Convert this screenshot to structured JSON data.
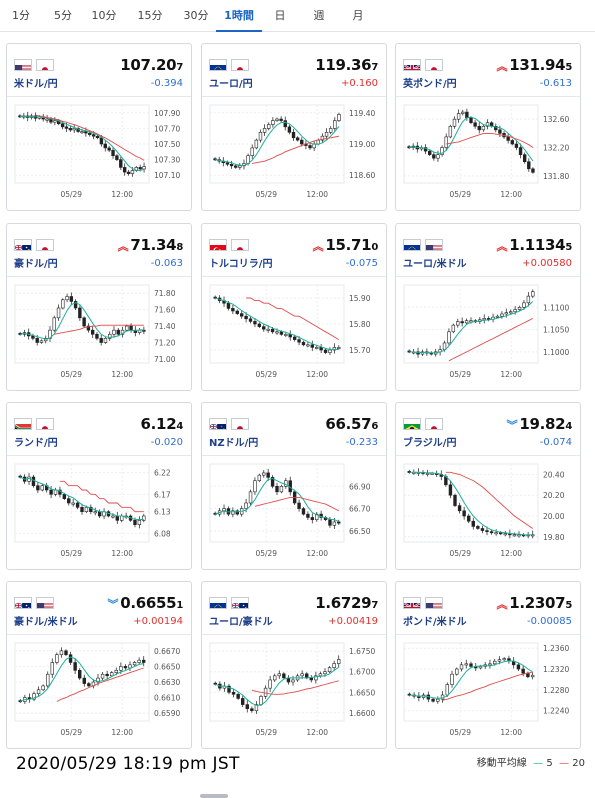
{
  "timeframe_tabs": [
    "1分",
    "5分",
    "10分",
    "15分",
    "30分",
    "1時間",
    "日",
    "週",
    "月"
  ],
  "active_tab": "1時間",
  "colors": {
    "accent": "#1d64c4",
    "negative_change": "#2f6fcf",
    "positive_change": "#e0312f",
    "ma5": "#1cb09a",
    "ma20": "#e04b4b"
  },
  "cards": [
    {
      "name": "米ドル/円",
      "flags": [
        "us-flag",
        "jp-flag"
      ],
      "price_main": "107.20",
      "price_sub": "7",
      "change": "-0.394",
      "dir": "neg",
      "arrow": "",
      "chart_data": {
        "type": "candlestick",
        "x_ticks": [
          "05/29",
          "12:00"
        ],
        "y_ticks": [
          "107.90",
          "107.70",
          "107.50",
          "107.30",
          "107.10"
        ],
        "ylim": [
          107.0,
          108.0
        ],
        "close": [
          107.85,
          107.86,
          107.84,
          107.86,
          107.83,
          107.85,
          107.82,
          107.82,
          107.78,
          107.8,
          107.76,
          107.72,
          107.7,
          107.68,
          107.7,
          107.66,
          107.66,
          107.64,
          107.62,
          107.6,
          107.58,
          107.5,
          107.45,
          107.42,
          107.35,
          107.3,
          107.2,
          107.14,
          107.12,
          107.16,
          107.2,
          107.18,
          107.21
        ],
        "ma20": [
          107.87,
          107.86,
          107.85,
          107.84,
          107.83,
          107.82,
          107.81,
          107.79,
          107.78,
          107.76,
          107.75,
          107.73,
          107.71,
          107.69,
          107.67,
          107.65,
          107.63,
          107.6,
          107.58,
          107.55,
          107.52,
          107.49,
          107.46,
          107.43,
          107.4,
          107.37,
          107.34,
          107.32,
          107.29
        ]
      }
    },
    {
      "name": "ユーロ/円",
      "flags": [
        "eu-flag",
        "jp-flag"
      ],
      "price_main": "119.36",
      "price_sub": "7",
      "change": "+0.160",
      "dir": "pos",
      "arrow": "",
      "chart_data": {
        "type": "candlestick",
        "x_ticks": [
          "05/29",
          "12:00"
        ],
        "y_ticks": [
          "119.40",
          "119.00",
          "118.60"
        ],
        "ylim": [
          118.5,
          119.5
        ],
        "close": [
          118.8,
          118.78,
          118.76,
          118.74,
          118.72,
          118.7,
          118.72,
          118.75,
          118.85,
          118.95,
          119.05,
          119.15,
          119.2,
          119.25,
          119.3,
          119.32,
          119.3,
          119.22,
          119.15,
          119.08,
          119.05,
          119.0,
          118.98,
          118.95,
          119.0,
          119.05,
          119.1,
          119.15,
          119.2,
          119.3,
          119.38
        ],
        "ma20": [
          118.75,
          118.76,
          118.77,
          118.78,
          118.8,
          118.82,
          118.85,
          118.87,
          118.9,
          118.92,
          118.94,
          118.96,
          118.98,
          119.0,
          119.02,
          119.04,
          119.05,
          119.06,
          119.07,
          119.08,
          119.09,
          119.1
        ]
      }
    },
    {
      "name": "英ポンド/円",
      "flags": [
        "gb-flag",
        "jp-flag"
      ],
      "price_main": "131.94",
      "price_sub": "5",
      "change": "-0.613",
      "dir": "neg",
      "arrow": "up",
      "chart_data": {
        "type": "candlestick",
        "x_ticks": [
          "05/29",
          "12:00"
        ],
        "y_ticks": [
          "132.60",
          "132.20",
          "131.80"
        ],
        "ylim": [
          131.7,
          132.8
        ],
        "close": [
          132.2,
          132.22,
          132.18,
          132.2,
          132.15,
          132.1,
          132.05,
          132.1,
          132.2,
          132.35,
          132.5,
          132.6,
          132.68,
          132.7,
          132.62,
          132.55,
          132.5,
          132.45,
          132.5,
          132.55,
          132.5,
          132.45,
          132.4,
          132.35,
          132.3,
          132.25,
          132.2,
          132.1,
          132.0,
          131.9,
          131.85
        ],
        "ma20": [
          132.25,
          132.26,
          132.27,
          132.28,
          132.3,
          132.32,
          132.34,
          132.36,
          132.38,
          132.4,
          132.4,
          132.4,
          132.39,
          132.38,
          132.37,
          132.36,
          132.34,
          132.32,
          132.3,
          132.27,
          132.24,
          132.2
        ]
      }
    },
    {
      "name": "豪ドル/円",
      "flags": [
        "au-flag",
        "jp-flag"
      ],
      "price_main": "71.34",
      "price_sub": "8",
      "change": "-0.063",
      "dir": "neg",
      "arrow": "up",
      "chart_data": {
        "type": "candlestick",
        "x_ticks": [
          "05/29",
          "12:00"
        ],
        "y_ticks": [
          "71.80",
          "71.60",
          "71.40",
          "71.20",
          "71.00"
        ],
        "ylim": [
          70.95,
          71.9
        ],
        "close": [
          71.3,
          71.32,
          71.28,
          71.25,
          71.2,
          71.22,
          71.25,
          71.35,
          71.5,
          71.62,
          71.72,
          71.76,
          71.7,
          71.62,
          71.5,
          71.4,
          71.35,
          71.3,
          71.25,
          71.2,
          71.25,
          71.3,
          71.35,
          71.3,
          71.35,
          71.4,
          71.35,
          71.32,
          71.35,
          71.34
        ],
        "ma20": [
          71.3,
          71.31,
          71.32,
          71.33,
          71.34,
          71.35,
          71.36,
          71.38,
          71.39,
          71.4,
          71.4,
          71.41,
          71.41,
          71.41,
          71.41,
          71.41,
          71.41,
          71.41,
          71.41,
          71.41,
          71.41,
          71.41
        ]
      }
    },
    {
      "name": "トルコリラ/円",
      "flags": [
        "tr-flag",
        "jp-flag"
      ],
      "price_main": "15.71",
      "price_sub": "0",
      "change": "-0.075",
      "dir": "neg",
      "arrow": "up",
      "chart_data": {
        "type": "candlestick",
        "x_ticks": [
          "05/29",
          "12:00"
        ],
        "y_ticks": [
          "15.90",
          "15.80",
          "15.70"
        ],
        "ylim": [
          15.65,
          15.95
        ],
        "close": [
          15.9,
          15.89,
          15.88,
          15.86,
          15.85,
          15.84,
          15.83,
          15.82,
          15.81,
          15.8,
          15.79,
          15.78,
          15.78,
          15.77,
          15.77,
          15.76,
          15.76,
          15.75,
          15.74,
          15.73,
          15.72,
          15.72,
          15.71,
          15.71,
          15.7,
          15.69,
          15.7,
          15.71,
          15.71
        ],
        "ma20": [
          15.9,
          15.9,
          15.89,
          15.89,
          15.88,
          15.88,
          15.87,
          15.86,
          15.86,
          15.85,
          15.84,
          15.83,
          15.83,
          15.82,
          15.81,
          15.8,
          15.79,
          15.78,
          15.77,
          15.76,
          15.75,
          15.74
        ]
      }
    },
    {
      "name": "ユーロ/米ドル",
      "flags": [
        "eu-flag",
        "us-flag"
      ],
      "price_main": "1.1134",
      "price_sub": "5",
      "change": "+0.00580",
      "dir": "pos",
      "arrow": "up",
      "chart_data": {
        "type": "candlestick",
        "x_ticks": [
          "05/29",
          "12:00"
        ],
        "y_ticks": [
          "1.1100",
          "1.1050",
          "1.1000"
        ],
        "ylim": [
          1.0975,
          1.115
        ],
        "close": [
          1.1,
          1.1,
          1.0995,
          1.1,
          1.0998,
          1.0995,
          1.1,
          1.1005,
          1.102,
          1.1045,
          1.106,
          1.1068,
          1.1065,
          1.107,
          1.107,
          1.1068,
          1.1072,
          1.1075,
          1.1073,
          1.1078,
          1.108,
          1.1085,
          1.1088,
          1.109,
          1.1095,
          1.11,
          1.111,
          1.1125,
          1.1135
        ],
        "ma20": [
          1.098,
          1.0985,
          1.099,
          1.0995,
          1.1,
          1.1005,
          1.101,
          1.1015,
          1.102,
          1.1025,
          1.103,
          1.1035,
          1.104,
          1.1045,
          1.105,
          1.1055,
          1.106,
          1.1065,
          1.107,
          1.1075
        ]
      }
    },
    {
      "name": "ランド/円",
      "flags": [
        "za-flag",
        "jp-flag"
      ],
      "price_main": "6.12",
      "price_sub": "4",
      "change": "-0.020",
      "dir": "neg",
      "arrow": "",
      "chart_data": {
        "type": "candlestick",
        "x_ticks": [
          "05/29",
          "12:00"
        ],
        "y_ticks": [
          "6.22",
          "6.17",
          "6.13",
          "6.08"
        ],
        "ylim": [
          6.06,
          6.24
        ],
        "close": [
          6.21,
          6.2,
          6.21,
          6.19,
          6.18,
          6.19,
          6.18,
          6.17,
          6.18,
          6.17,
          6.16,
          6.15,
          6.15,
          6.14,
          6.13,
          6.14,
          6.13,
          6.13,
          6.12,
          6.13,
          6.12,
          6.12,
          6.11,
          6.12,
          6.12,
          6.11,
          6.1,
          6.11,
          6.12
        ],
        "ma20": [
          6.2,
          6.2,
          6.19,
          6.19,
          6.19,
          6.18,
          6.18,
          6.17,
          6.17,
          6.16,
          6.16,
          6.15,
          6.15,
          6.15,
          6.14,
          6.14,
          6.14,
          6.13,
          6.13,
          6.13
        ]
      }
    },
    {
      "name": "NZドル/円",
      "flags": [
        "nz-flag",
        "jp-flag"
      ],
      "price_main": "66.57",
      "price_sub": "6",
      "change": "-0.233",
      "dir": "neg",
      "arrow": "",
      "chart_data": {
        "type": "candlestick",
        "x_ticks": [
          "05/29",
          "12:00"
        ],
        "y_ticks": [
          "66.90",
          "66.70",
          "66.50"
        ],
        "ylim": [
          66.4,
          67.1
        ],
        "close": [
          66.65,
          66.68,
          66.7,
          66.65,
          66.68,
          66.65,
          66.7,
          66.75,
          66.85,
          66.95,
          67.0,
          67.02,
          66.98,
          66.9,
          66.85,
          66.9,
          66.95,
          66.85,
          66.75,
          66.7,
          66.65,
          66.62,
          66.6,
          66.65,
          66.62,
          66.6,
          66.55,
          66.58,
          66.57
        ],
        "ma20": [
          66.72,
          66.73,
          66.74,
          66.75,
          66.76,
          66.77,
          66.78,
          66.79,
          66.8,
          66.8,
          66.8,
          66.79,
          66.78,
          66.77,
          66.76,
          66.75,
          66.74,
          66.72,
          66.7,
          66.68
        ]
      }
    },
    {
      "name": "ブラジル/円",
      "flags": [
        "br-flag",
        "jp-flag"
      ],
      "price_main": "19.82",
      "price_sub": "4",
      "change": "-0.074",
      "dir": "neg",
      "arrow": "down",
      "chart_data": {
        "type": "candlestick",
        "x_ticks": [
          "05/29",
          "12:00"
        ],
        "y_ticks": [
          "20.40",
          "20.20",
          "20.00",
          "19.80"
        ],
        "ylim": [
          19.75,
          20.5
        ],
        "close": [
          20.42,
          20.42,
          20.42,
          20.41,
          20.41,
          20.41,
          20.4,
          20.38,
          20.3,
          20.2,
          20.1,
          20.05,
          20.0,
          19.95,
          19.9,
          19.88,
          19.86,
          19.85,
          19.84,
          19.84,
          19.83,
          19.83,
          19.82,
          19.82,
          19.82,
          19.81,
          19.82,
          19.82
        ],
        "ma20": [
          20.42,
          20.42,
          20.41,
          20.4,
          20.38,
          20.36,
          20.34,
          20.31,
          20.28,
          20.24,
          20.2,
          20.16,
          20.12,
          20.08,
          20.04,
          20.0,
          19.97,
          19.94,
          19.91,
          19.88
        ]
      }
    },
    {
      "name": "豪ドル/米ドル",
      "flags": [
        "au-flag",
        "us-flag"
      ],
      "price_main": "0.6655",
      "price_sub": "1",
      "change": "+0.00194",
      "dir": "pos",
      "arrow": "down",
      "chart_data": {
        "type": "candlestick",
        "x_ticks": [
          "05/29",
          "12:00"
        ],
        "y_ticks": [
          "0.6670",
          "0.6650",
          "0.6630",
          "0.6610",
          "0.6590"
        ],
        "ylim": [
          0.658,
          0.668
        ],
        "close": [
          0.6605,
          0.661,
          0.6608,
          0.6615,
          0.662,
          0.6625,
          0.664,
          0.6655,
          0.6665,
          0.667,
          0.6665,
          0.6655,
          0.6645,
          0.6635,
          0.6628,
          0.6625,
          0.663,
          0.6635,
          0.664,
          0.6638,
          0.6642,
          0.6645,
          0.665,
          0.6648,
          0.6652,
          0.6655,
          0.6658,
          0.6655
        ],
        "ma20": [
          0.6605,
          0.6608,
          0.661,
          0.6613,
          0.6615,
          0.6618,
          0.662,
          0.6623,
          0.6625,
          0.6628,
          0.663,
          0.6632,
          0.6634,
          0.6636,
          0.6638,
          0.664,
          0.6642,
          0.6644,
          0.6646,
          0.6648
        ]
      }
    },
    {
      "name": "ユーロ/豪ドル",
      "flags": [
        "eu-flag",
        "au-flag"
      ],
      "price_main": "1.6729",
      "price_sub": "7",
      "change": "+0.00419",
      "dir": "pos",
      "arrow": "",
      "chart_data": {
        "type": "candlestick",
        "x_ticks": [
          "05/29",
          "12:00"
        ],
        "y_ticks": [
          "1.6750",
          "1.6700",
          "1.6650",
          "1.6600"
        ],
        "ylim": [
          1.658,
          1.677
        ],
        "close": [
          1.667,
          1.666,
          1.6665,
          1.665,
          1.6645,
          1.6635,
          1.662,
          1.661,
          1.6605,
          1.662,
          1.664,
          1.666,
          1.668,
          1.669,
          1.6695,
          1.6685,
          1.6675,
          1.668,
          1.669,
          1.6695,
          1.6685,
          1.668,
          1.669,
          1.6695,
          1.67,
          1.671,
          1.672,
          1.673
        ],
        "ma20": [
          1.6655,
          1.6652,
          1.665,
          1.6648,
          1.6646,
          1.6645,
          1.6645,
          1.6646,
          1.6648,
          1.665,
          1.6652,
          1.6655,
          1.6658,
          1.666,
          1.6663,
          1.6666,
          1.6669,
          1.6672,
          1.6675,
          1.6678
        ]
      }
    },
    {
      "name": "ポンド/米ドル",
      "flags": [
        "gb-flag",
        "us-flag"
      ],
      "price_main": "1.2307",
      "price_sub": "5",
      "change": "-0.00085",
      "dir": "neg",
      "arrow": "up",
      "chart_data": {
        "type": "candlestick",
        "x_ticks": [
          "05/29",
          "12:00"
        ],
        "y_ticks": [
          "1.2360",
          "1.2320",
          "1.2280",
          "1.2240"
        ],
        "ylim": [
          1.222,
          1.237
        ],
        "close": [
          1.227,
          1.2268,
          1.2265,
          1.227,
          1.2262,
          1.2258,
          1.2262,
          1.227,
          1.229,
          1.231,
          1.232,
          1.2328,
          1.233,
          1.2325,
          1.2322,
          1.2325,
          1.2328,
          1.233,
          1.2335,
          1.2338,
          1.234,
          1.2335,
          1.2328,
          1.232,
          1.2312,
          1.2305,
          1.2308
        ],
        "ma20": [
          1.226,
          1.2262,
          1.2265,
          1.2268,
          1.227,
          1.2273,
          1.2276,
          1.228,
          1.2283,
          1.2286,
          1.229,
          1.2293,
          1.2296,
          1.2299,
          1.2302,
          1.2305,
          1.2308,
          1.231,
          1.2312,
          1.2314
        ]
      }
    }
  ],
  "footer": {
    "timestamp": "2020/05/29 18:19 pm JST",
    "legend_label": "移動平均線",
    "ma5_label": "5",
    "ma20_label": "20"
  }
}
